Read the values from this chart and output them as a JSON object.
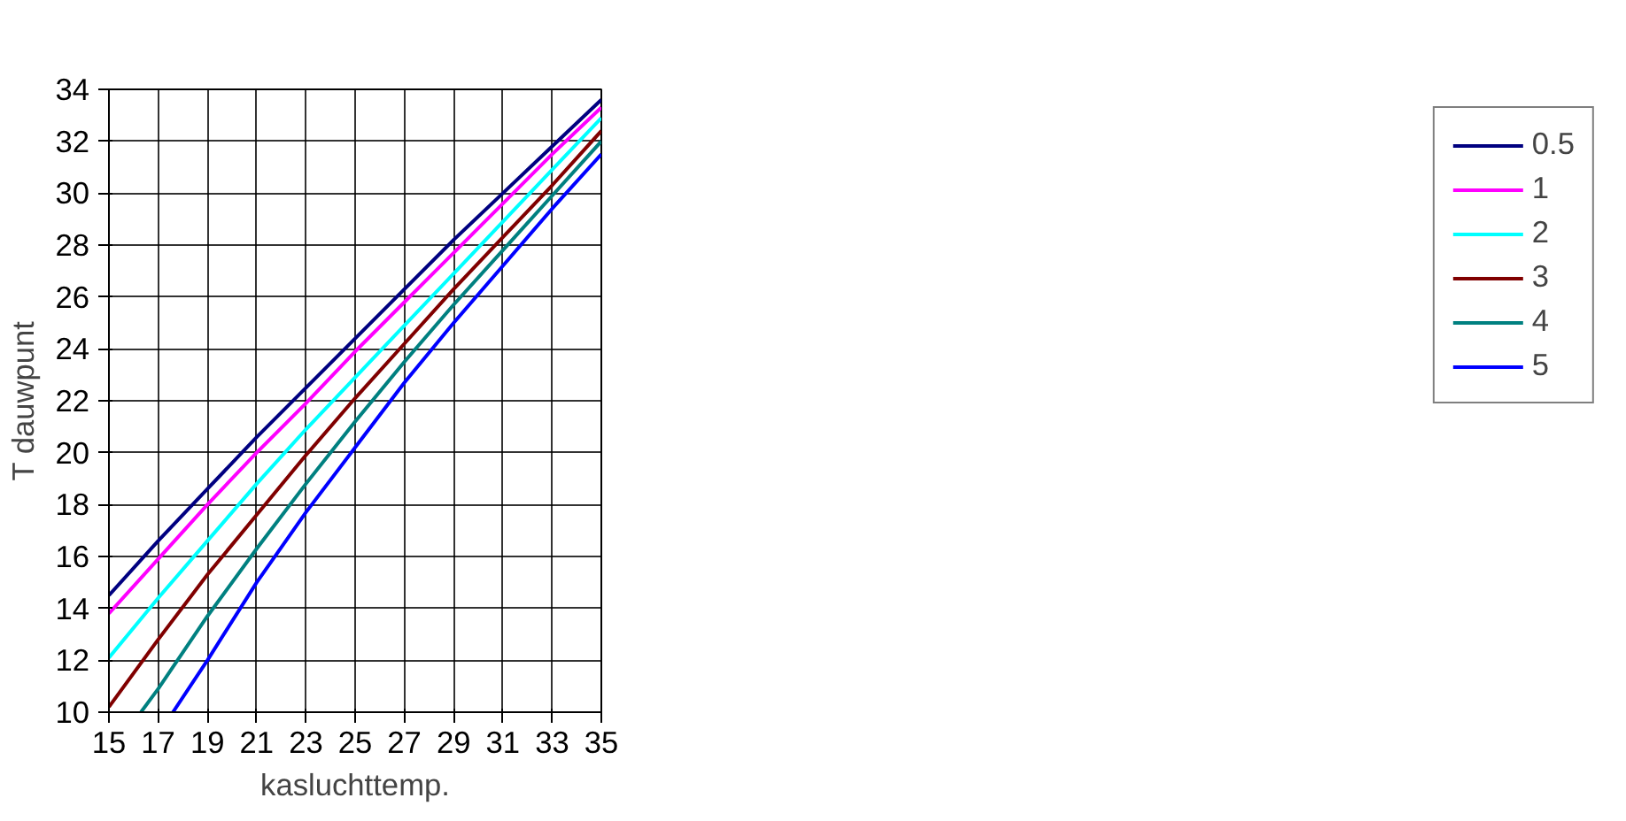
{
  "chart_data": {
    "type": "line",
    "xlabel": "kasluchttemp.",
    "ylabel": "T dauwpunt",
    "xlim": [
      15,
      35
    ],
    "ylim": [
      10,
      34
    ],
    "xticks": [
      15,
      17,
      19,
      21,
      23,
      25,
      27,
      29,
      31,
      33,
      35
    ],
    "yticks": [
      10,
      12,
      14,
      16,
      18,
      20,
      22,
      24,
      26,
      28,
      30,
      32,
      34
    ],
    "grid": true,
    "legend": "right",
    "marker": "none",
    "line_style": "solid",
    "x": [
      15,
      17,
      19,
      21,
      23,
      25,
      27,
      29,
      31,
      33,
      35
    ],
    "series": [
      {
        "name": "0.5",
        "color": "#000080",
        "values": [
          14.5,
          16.6,
          18.6,
          20.6,
          22.5,
          24.4,
          26.3,
          28.2,
          30.0,
          31.8,
          33.6
        ]
      },
      {
        "name": "1",
        "color": "#ff00ff",
        "values": [
          13.8,
          15.9,
          18.0,
          20.0,
          21.9,
          23.9,
          25.8,
          27.7,
          29.6,
          31.5,
          33.3
        ]
      },
      {
        "name": "2",
        "color": "#00ffff",
        "values": [
          12.1,
          14.4,
          16.6,
          18.8,
          20.9,
          22.9,
          24.9,
          26.9,
          28.9,
          30.9,
          32.9
        ]
      },
      {
        "name": "3",
        "color": "#800000",
        "values": [
          10.2,
          12.8,
          15.3,
          17.6,
          19.9,
          22.1,
          24.2,
          26.3,
          28.3,
          30.3,
          32.4
        ]
      },
      {
        "name": "4",
        "color": "#008080",
        "x": [
          16.3,
          17,
          19,
          21,
          23,
          25,
          27,
          29,
          31,
          33,
          35
        ],
        "values": [
          10.0,
          10.9,
          13.7,
          16.3,
          18.8,
          21.2,
          23.5,
          25.7,
          27.8,
          29.9,
          32.0
        ]
      },
      {
        "name": "5",
        "color": "#0000ff",
        "x": [
          17.6,
          19,
          21,
          23,
          25,
          27,
          29,
          31,
          33,
          35
        ],
        "values": [
          10.0,
          12.0,
          15.0,
          17.7,
          20.2,
          22.7,
          25.0,
          27.2,
          29.4,
          31.5
        ]
      }
    ]
  }
}
